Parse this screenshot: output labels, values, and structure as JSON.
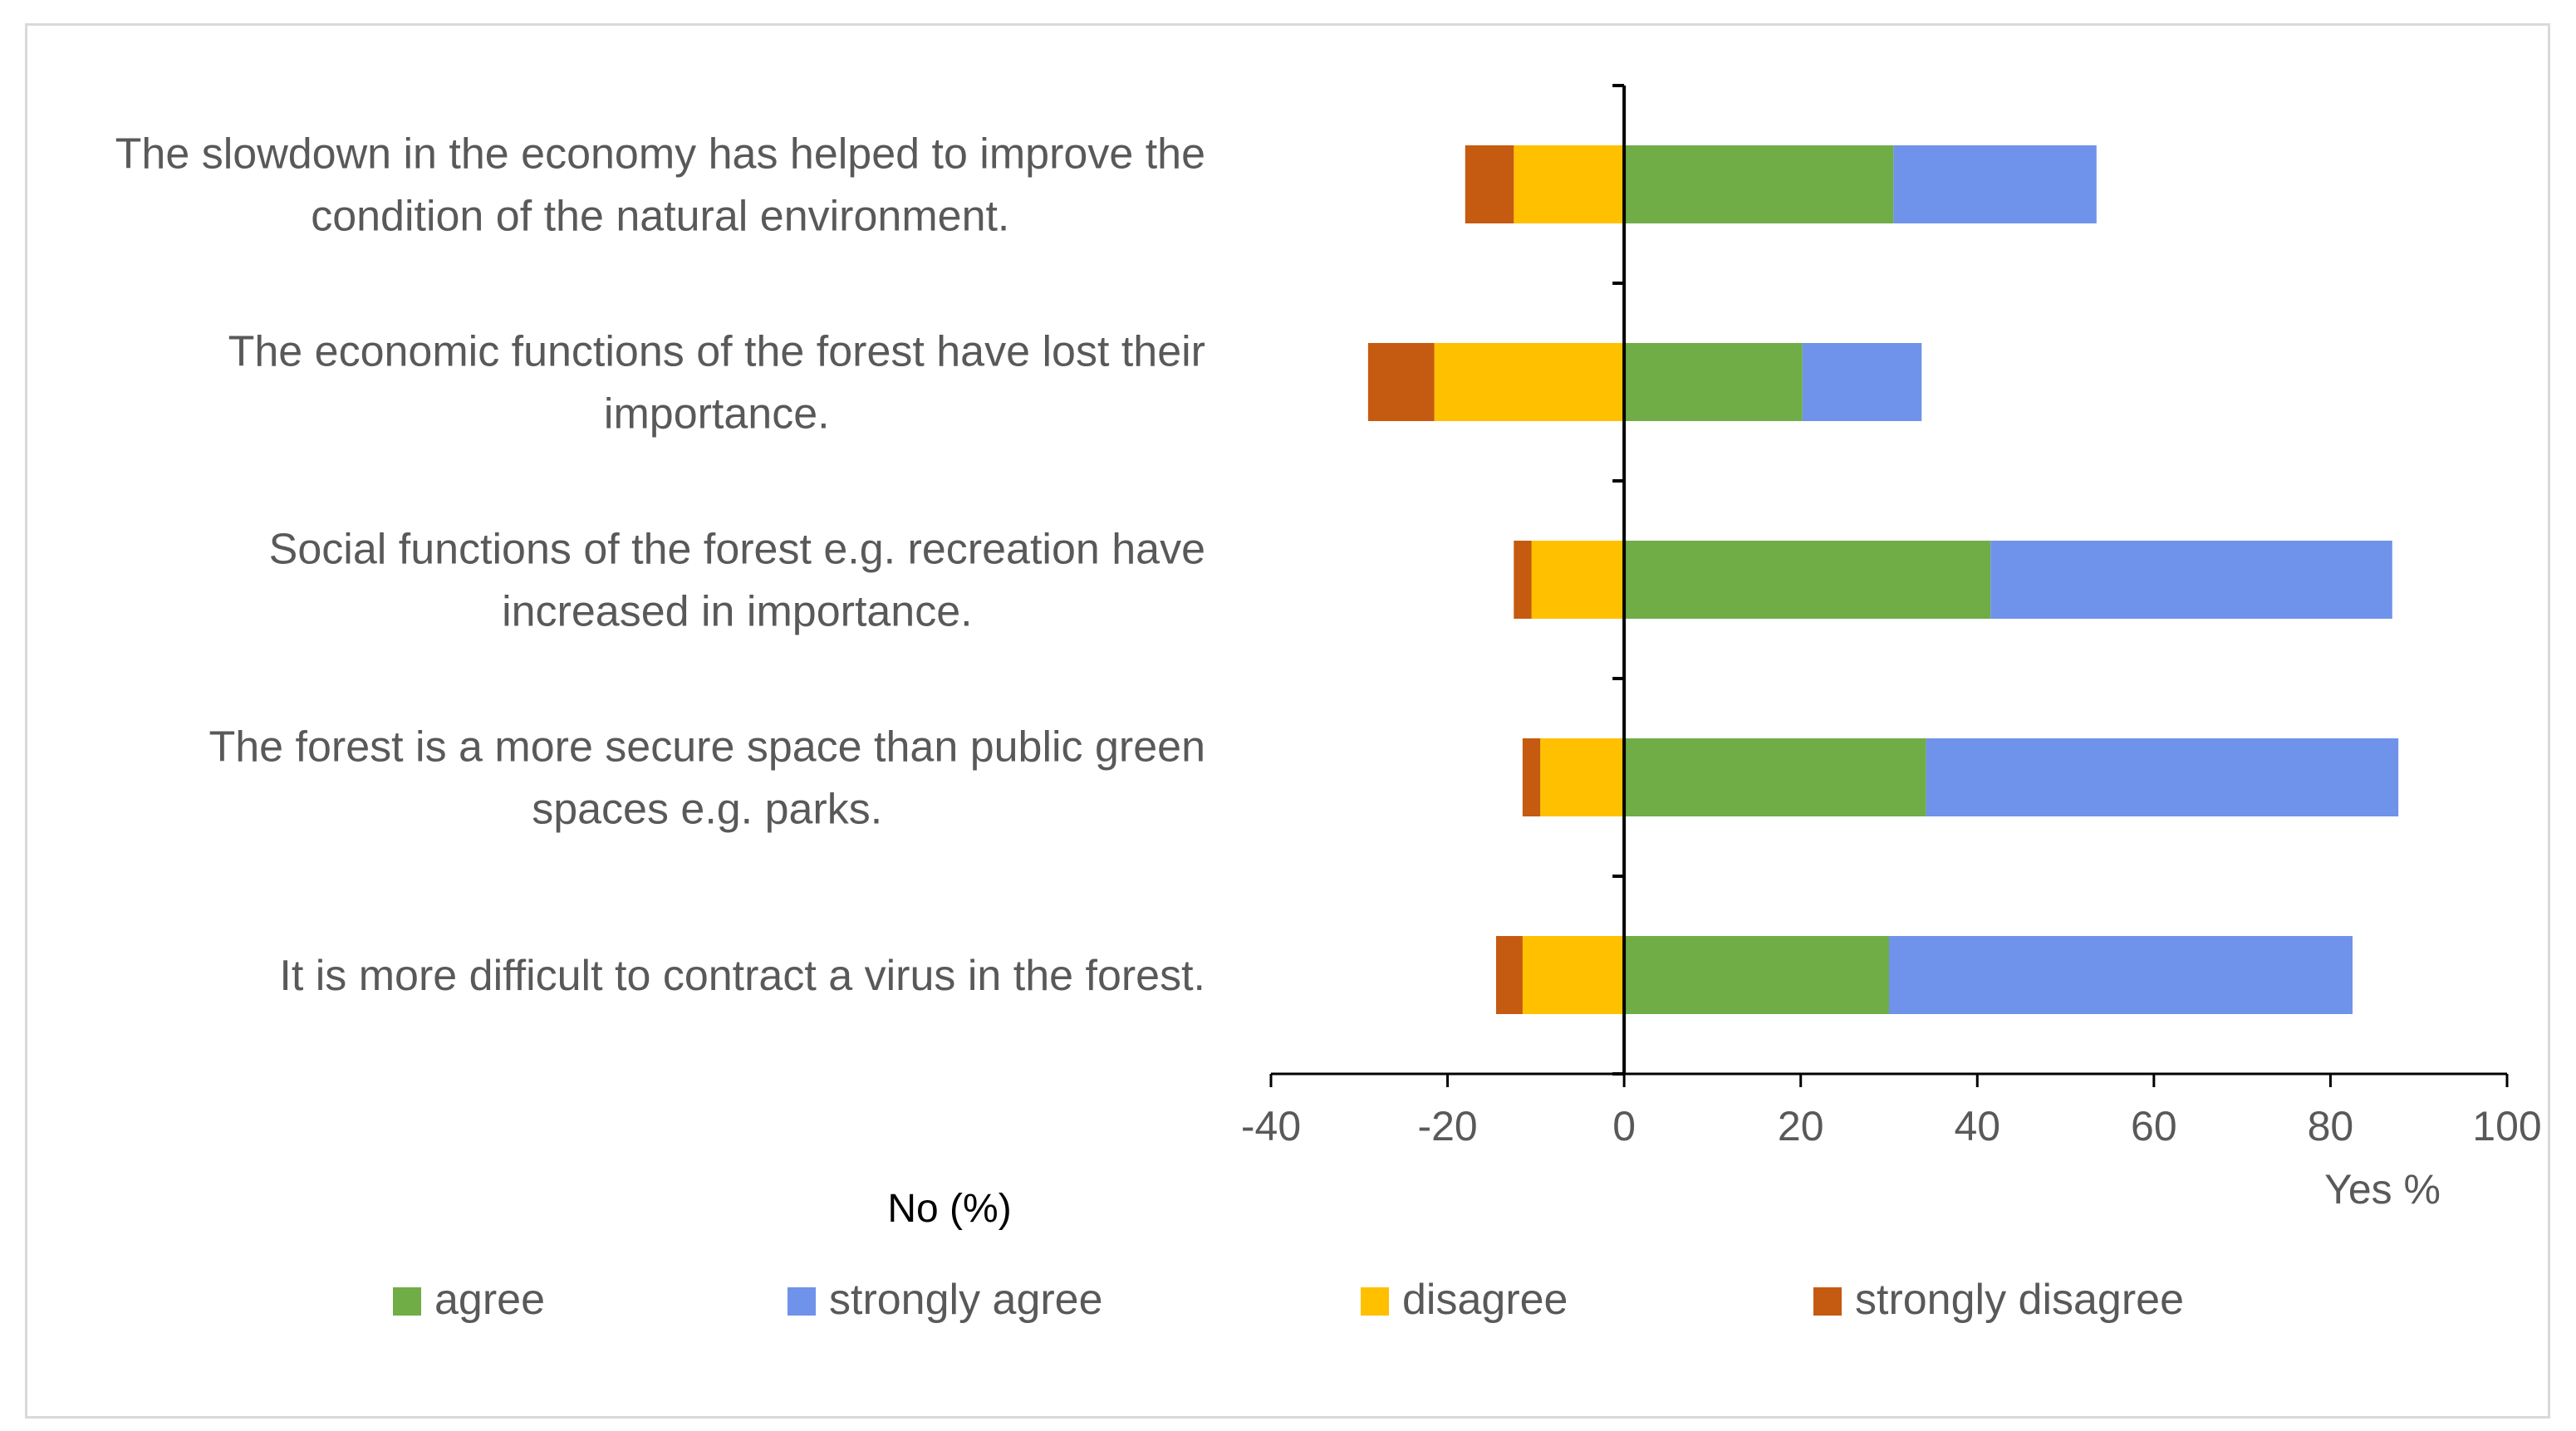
{
  "chart_data": {
    "type": "bar",
    "orientation": "horizontal",
    "stacked": true,
    "diverging": true,
    "categories": [
      [
        "The slowdown in the economy has helped to improve the",
        "condition of the natural environment."
      ],
      [
        "The economic functions of the forest have lost their",
        "importance."
      ],
      [
        "Social functions of the forest e.g. recreation have",
        "increased in importance."
      ],
      [
        "The forest is a more secure space than public green",
        "spaces e.g. parks."
      ],
      [
        "It is more difficult to contract a virus in the forest."
      ]
    ],
    "series": [
      {
        "name": "agree",
        "color": "#70ad47",
        "values": [
          30.5,
          20.2,
          41.5,
          34.2,
          30.0
        ]
      },
      {
        "name": "strongly agree",
        "color": "#6f93ea",
        "values": [
          23.0,
          13.5,
          45.5,
          53.5,
          52.5
        ]
      },
      {
        "name": "disagree",
        "color": "#ffc000",
        "values": [
          -12.5,
          -21.5,
          -10.5,
          -9.5,
          -11.5
        ]
      },
      {
        "name": "strongly disagree",
        "color": "#c55a11",
        "values": [
          -5.5,
          -7.5,
          -2.0,
          -2.0,
          -3.0
        ]
      }
    ],
    "xlim": [
      -40,
      100
    ],
    "xticks": [
      "-40",
      "-20",
      "0",
      "20",
      "40",
      "60",
      "80",
      "100"
    ],
    "xlabel_right": "Yes %",
    "xlabel_left": "No (%)",
    "legend_position": "bottom"
  }
}
